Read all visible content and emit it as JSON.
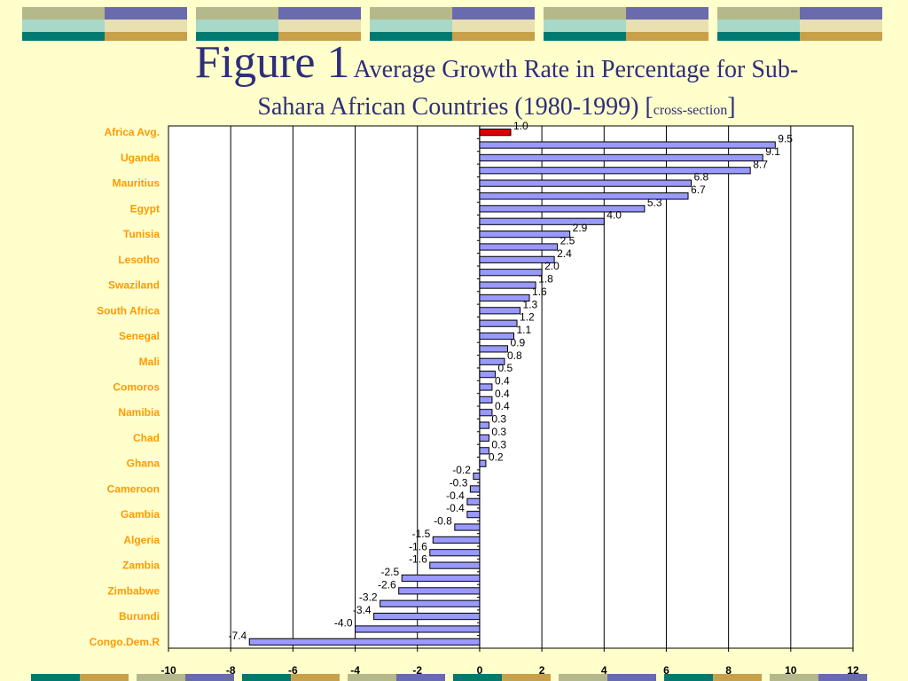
{
  "title": {
    "figure": "Figure 1",
    "text_line1": "Average Growth Rate in Percentage for Sub-",
    "text_line2": "Sahara African Countries (1980-1999) [",
    "small": "cross-section",
    "close": "]"
  },
  "chart_data": {
    "type": "bar",
    "orientation": "horizontal",
    "xlim": [
      -10,
      12
    ],
    "x_ticks": [
      "-10",
      "-8",
      "-6",
      "-4",
      "-2",
      "0",
      "2",
      "4",
      "6",
      "8",
      "10",
      "12"
    ],
    "grid": true,
    "y_tick_labels": [
      "Africa Avg.",
      "Uganda",
      "Mauritius",
      "Egypt",
      "Tunisia",
      "Lesotho",
      "Swaziland",
      "South Africa",
      "Senegal",
      "Mali",
      "Comoros",
      "Namibia",
      "Chad",
      "Ghana",
      "Cameroon",
      "Gambia",
      "Algeria",
      "Zambia",
      "Zimbabwe",
      "Burundi",
      "Congo.Dem.R"
    ],
    "values": [
      1.0,
      9.5,
      9.1,
      8.7,
      6.8,
      6.7,
      5.3,
      4.0,
      2.9,
      2.5,
      2.4,
      2.0,
      1.8,
      1.6,
      1.3,
      1.2,
      1.1,
      0.9,
      0.8,
      0.5,
      0.4,
      0.4,
      0.4,
      0.3,
      0.3,
      0.3,
      0.2,
      -0.2,
      -0.3,
      -0.4,
      -0.4,
      -0.8,
      -1.5,
      -1.6,
      -1.6,
      -2.5,
      -2.6,
      -3.2,
      -3.4,
      -4.0,
      -7.4
    ],
    "data_labels": [
      "1.0",
      "9.5",
      "9.1",
      "8.7",
      "6.8",
      "6.7",
      "5.3",
      "4.0",
      "2.9",
      "2.5",
      "2.4",
      "2.0",
      "1.8",
      "1.6",
      "1.3",
      "1.2",
      "1.1",
      "0.9",
      "0.8",
      "0.5",
      "0.4",
      "0.4",
      "0.4",
      "0.3",
      "0.3",
      "0.3",
      "0.2",
      "-0.2",
      "-0.3",
      "-0.4",
      "-0.4",
      "-0.8",
      "-1.5",
      "-1.6",
      "-1.6",
      "-2.5",
      "-2.6",
      "-3.2",
      "-3.4",
      "-4.0",
      "-7.4"
    ],
    "highlight_index": 0,
    "colors": {
      "bar": "#9999FF",
      "highlight": "#DD0000",
      "category_label": "#FF9900",
      "title": "#2E2E7A",
      "background": "#FFFFCC",
      "plot_area": "#FFFFFF"
    }
  },
  "decoration": {
    "colors": [
      "#B5B88A",
      "#6A6AAE",
      "#007A70",
      "#C8A04A",
      "#D8D8C8"
    ]
  }
}
